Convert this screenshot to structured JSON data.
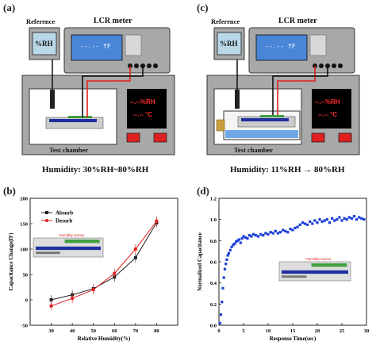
{
  "panels": {
    "a": {
      "label": "(a)",
      "reference_label": "Reference",
      "lcr_label": "LCR meter",
      "rh_sensor": "%RH",
      "lcd_readout": "--.-- fF",
      "display_rh": "--.--%RH",
      "display_temp": "--.-- °C",
      "chamber_label": "Test chamber",
      "caption": "Humidity: 30%RH~80%RH"
    },
    "c": {
      "label": "(c)",
      "reference_label": "Reference",
      "lcr_label": "LCR meter",
      "rh_sensor": "%RH",
      "lcd_readout": "--.-- fF",
      "display_rh": "--.--%RH",
      "display_temp": "--.-- °C",
      "chamber_label": "Test chamber",
      "caption": "Humidity: 11%RH → 80%RH"
    },
    "b": {
      "label": "(b)"
    },
    "d": {
      "label": "(d)"
    }
  },
  "chart_data": [
    {
      "type": "line",
      "xlabel": "Relative Humidity(%)",
      "ylabel": "Capacitance Change(fF)",
      "xlim": [
        20,
        90
      ],
      "ylim": [
        -50,
        200
      ],
      "xticks": [
        30,
        40,
        50,
        60,
        70,
        80
      ],
      "yticks": [
        -50,
        0,
        50,
        100,
        150,
        200
      ],
      "inset_label": "Humidity sensor",
      "legend_placement": "top-left",
      "series": [
        {
          "name": "Absorb",
          "color": "#222222",
          "x": [
            30,
            40,
            50,
            60,
            70,
            80
          ],
          "y": [
            0,
            10,
            22,
            45,
            83,
            152
          ]
        },
        {
          "name": "Desorb",
          "color": "#e02020",
          "x": [
            30,
            40,
            50,
            60,
            70,
            80
          ],
          "y": [
            -12,
            3,
            20,
            52,
            100,
            155
          ]
        }
      ]
    },
    {
      "type": "scatter",
      "xlabel": "Response Time(sec)",
      "ylabel": "Normalized Capacitance",
      "xlim": [
        0,
        30
      ],
      "ylim": [
        0,
        1.2
      ],
      "xticks": [
        0,
        5,
        10,
        15,
        20,
        25,
        30
      ],
      "yticks": [
        0.0,
        0.2,
        0.4,
        0.6,
        0.8,
        1.0,
        1.2
      ],
      "inset_label": "Humidity sensor",
      "series": [
        {
          "name": "",
          "color": "#1a3fd6",
          "x": [
            0.2,
            0.4,
            0.6,
            0.8,
            1.0,
            1.2,
            1.4,
            1.6,
            1.8,
            2.0,
            2.3,
            2.6,
            2.9,
            3.2,
            3.5,
            3.8,
            4.1,
            4.4,
            4.7,
            5.0,
            5.4,
            5.8,
            6.2,
            6.6,
            7.0,
            7.5,
            8.0,
            8.5,
            9.0,
            9.5,
            10.0,
            10.5,
            11.0,
            11.5,
            12.0,
            12.5,
            13.0,
            13.5,
            14.0,
            14.5,
            15.0,
            15.5,
            16.0,
            16.5,
            17.0,
            17.5,
            18.0,
            18.5,
            19.0,
            19.5,
            20.0,
            20.5,
            21.0,
            21.5,
            22.0,
            22.5,
            23.0,
            23.5,
            24.0,
            24.5,
            25.0,
            25.5,
            26.0,
            26.5,
            27.0,
            27.5,
            28.0,
            28.5,
            29.0,
            29.5
          ],
          "y": [
            0.02,
            0.1,
            0.22,
            0.35,
            0.45,
            0.53,
            0.58,
            0.62,
            0.66,
            0.68,
            0.71,
            0.74,
            0.76,
            0.77,
            0.79,
            0.8,
            0.81,
            0.78,
            0.82,
            0.84,
            0.83,
            0.82,
            0.85,
            0.84,
            0.86,
            0.85,
            0.84,
            0.86,
            0.85,
            0.87,
            0.86,
            0.88,
            0.87,
            0.89,
            0.87,
            0.88,
            0.9,
            0.89,
            0.88,
            0.91,
            0.9,
            0.92,
            0.93,
            0.95,
            0.97,
            0.96,
            0.95,
            0.98,
            0.96,
            0.99,
            0.97,
            1.0,
            0.98,
            0.99,
            1.0,
            0.97,
            1.01,
            0.99,
            1.0,
            1.02,
            0.99,
            1.01,
            1.0,
            1.02,
            1.01,
            1.03,
            1.0,
            1.02,
            1.01,
            1.0
          ]
        }
      ]
    }
  ]
}
